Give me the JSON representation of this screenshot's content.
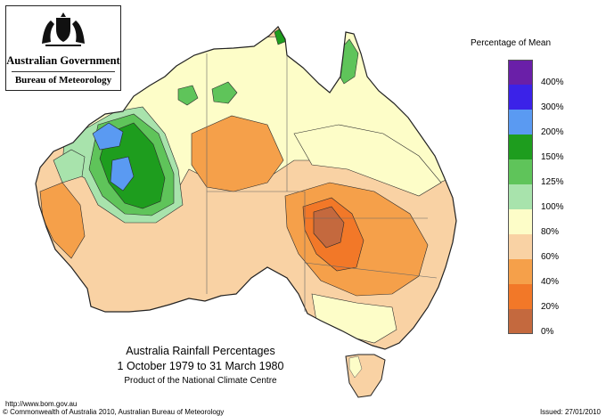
{
  "agency": {
    "government": "Australian Government",
    "bureau": "Bureau of Meteorology",
    "crest": "coat-of-arms-icon"
  },
  "map": {
    "title": "Australia Rainfall Percentages",
    "period": "1 October 1979 to 31 March 1980",
    "credit": "Product of the National Climate Centre"
  },
  "legend": {
    "title": "Percentage of Mean",
    "items": [
      {
        "label": "400%",
        "color": "#6a1fa8"
      },
      {
        "label": "300%",
        "color": "#3b22e8"
      },
      {
        "label": "200%",
        "color": "#5a9af2"
      },
      {
        "label": "150%",
        "color": "#1e9d1e"
      },
      {
        "label": "125%",
        "color": "#5fc45a"
      },
      {
        "label": "100%",
        "color": "#a8e3ac"
      },
      {
        "label": "80%",
        "color": "#fdfdc8"
      },
      {
        "label": "60%",
        "color": "#f9d2a4"
      },
      {
        "label": "40%",
        "color": "#f5a04a"
      },
      {
        "label": "20%",
        "color": "#f27828"
      },
      {
        "label": "0%",
        "color": "#c4693e"
      }
    ]
  },
  "footer": {
    "url": "http://www.bom.gov.au",
    "copyright": "© Commonwealth of Australia 2010, Australian Bureau of Meteorology",
    "issued": "Issued: 27/01/2010"
  }
}
